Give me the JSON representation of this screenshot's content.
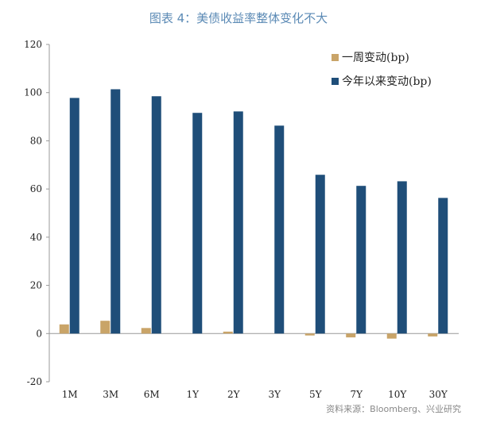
{
  "title": "图表 4：美债收益率整体变化不大",
  "source": "资料来源：Bloomberg、兴业研究",
  "colors": {
    "week": "#c9a468",
    "ytd": "#1f4e79",
    "axis": "#999999",
    "title": "#5b8ab5"
  },
  "chart_data": {
    "type": "bar",
    "title": "图表 4：美债收益率整体变化不大",
    "categories": [
      "1M",
      "3M",
      "6M",
      "1Y",
      "2Y",
      "3Y",
      "5Y",
      "7Y",
      "10Y",
      "30Y"
    ],
    "series": [
      {
        "name": "一周变动(bp)",
        "values": [
          3.8,
          5.3,
          2.3,
          0,
          0.8,
          0,
          -0.8,
          -1.6,
          -2.1,
          -1.2
        ]
      },
      {
        "name": "今年以来变动(bp)",
        "values": [
          97.8,
          101.4,
          98.5,
          91.6,
          92.2,
          86.3,
          65.9,
          61.3,
          63.2,
          56.3
        ]
      }
    ],
    "ylim": [
      -20,
      120
    ],
    "yticks": [
      -20,
      0,
      20,
      40,
      60,
      80,
      100,
      120
    ],
    "xlabel": "",
    "ylabel": "",
    "legend": "top-right",
    "grid": false
  }
}
